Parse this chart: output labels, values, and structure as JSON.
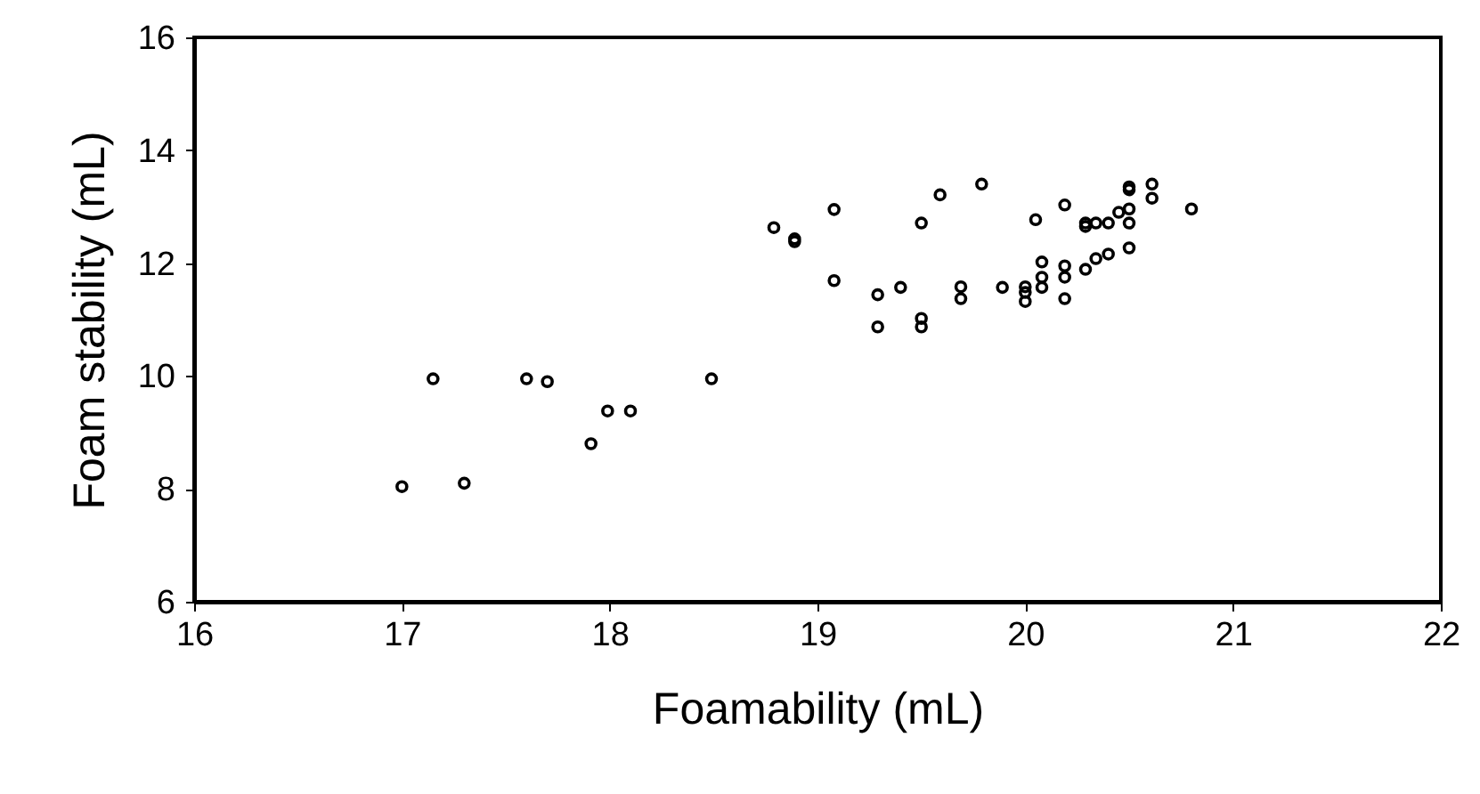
{
  "chart_data": {
    "type": "scatter",
    "xlabel": "Foamability (mL)",
    "ylabel": "Foam stability (mL)",
    "xlim": [
      16,
      22
    ],
    "xticks": [
      16,
      17,
      18,
      19,
      20,
      21,
      22
    ],
    "ylim": [
      6,
      16
    ],
    "yticks": [
      6,
      8,
      10,
      12,
      14,
      16
    ],
    "grid": false,
    "marker": "circle",
    "series": [
      {
        "color": "#000000",
        "x": [
          17.0,
          17.15,
          17.3,
          17.6,
          17.7,
          17.91,
          17.99,
          18.1,
          18.49,
          18.79,
          18.89,
          18.89,
          19.08,
          19.08,
          19.29,
          19.29,
          19.4,
          19.5,
          19.5,
          19.5,
          19.59,
          19.69,
          19.69,
          19.79,
          19.89,
          20.0,
          20.0,
          20.0,
          20.05,
          20.08,
          20.08,
          20.08,
          20.19,
          20.19,
          20.19,
          20.19,
          20.29,
          20.29,
          20.29,
          20.34,
          20.34,
          20.4,
          20.4,
          20.45,
          20.5,
          20.5,
          20.5,
          20.5,
          20.5,
          20.61,
          20.61,
          20.8
        ],
        "values": [
          8.04,
          9.95,
          8.1,
          9.95,
          9.9,
          8.8,
          9.38,
          9.38,
          9.95,
          12.63,
          12.43,
          12.38,
          12.95,
          11.69,
          11.44,
          10.87,
          11.57,
          12.71,
          11.02,
          10.87,
          13.21,
          11.58,
          11.37,
          13.4,
          11.57,
          11.58,
          11.48,
          11.32,
          12.77,
          12.02,
          11.75,
          11.57,
          13.03,
          11.95,
          11.75,
          11.37,
          12.65,
          12.71,
          11.89,
          12.71,
          12.08,
          12.71,
          12.16,
          12.9,
          13.35,
          13.3,
          12.96,
          12.71,
          12.27,
          13.4,
          13.15,
          12.96
        ]
      }
    ]
  }
}
